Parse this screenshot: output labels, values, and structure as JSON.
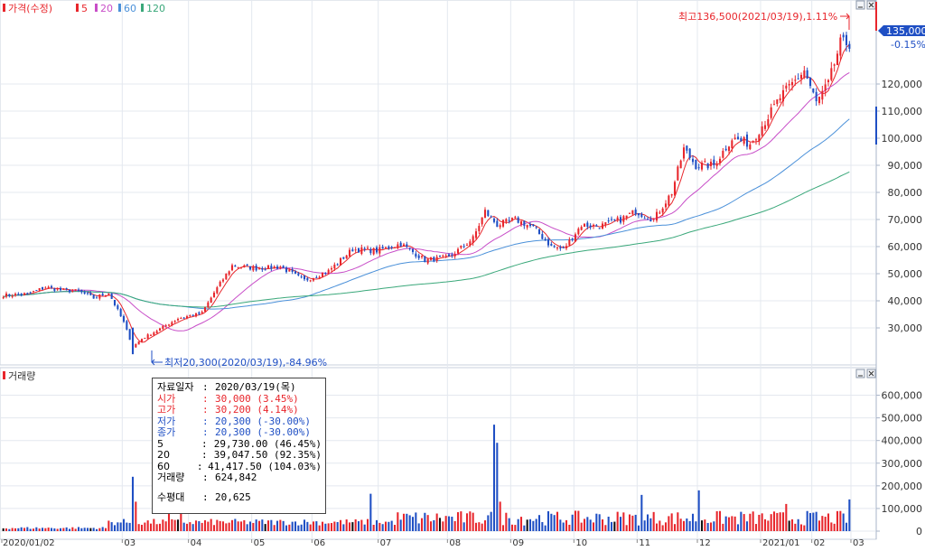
{
  "chart_data": [
    {
      "type": "candlestick",
      "legend": [
        {
          "name": "가격(수정)",
          "color": "#e8262c"
        },
        {
          "name": "5",
          "color": "#e8262c"
        },
        {
          "name": "20",
          "color": "#c84ec8"
        },
        {
          "name": "60",
          "color": "#4a90d9"
        },
        {
          "name": "120",
          "color": "#3aa87a"
        }
      ],
      "y_ticks": [
        "30,000",
        "40,000",
        "50,000",
        "60,000",
        "70,000",
        "80,000",
        "90,000",
        "100,000",
        "110,000",
        "120,000"
      ],
      "y_tick_values": [
        30000,
        40000,
        50000,
        60000,
        70000,
        80000,
        90000,
        100000,
        110000,
        120000
      ],
      "ylim": [
        17000,
        145000
      ],
      "current_price": "135,000",
      "current_change": "-0.15%",
      "high_label": "최고136,500(2021/03/19),1.11%",
      "low_label": "최저20,300(2020/03/19),-84.96%",
      "x_ticks": [
        "2020/01/02",
        "03",
        "04",
        "05",
        "06",
        "07",
        "08",
        "09",
        "10",
        "11",
        "12",
        "2021/01",
        "02",
        "03"
      ],
      "close_anchors": [
        [
          0,
          42000
        ],
        [
          8,
          42500
        ],
        [
          14,
          45000
        ],
        [
          19,
          44000
        ],
        [
          25,
          43500
        ],
        [
          30,
          41000
        ],
        [
          35,
          43000
        ],
        [
          40,
          32000
        ],
        [
          43,
          23000
        ],
        [
          46,
          26000
        ],
        [
          51,
          29000
        ],
        [
          58,
          33500
        ],
        [
          66,
          35500
        ],
        [
          70,
          43000
        ],
        [
          76,
          53000
        ],
        [
          84,
          52000
        ],
        [
          92,
          52500
        ],
        [
          100,
          47500
        ],
        [
          108,
          51000
        ],
        [
          116,
          59000
        ],
        [
          124,
          58500
        ],
        [
          132,
          61000
        ],
        [
          140,
          55000
        ],
        [
          148,
          56000
        ],
        [
          156,
          63000
        ],
        [
          160,
          73000
        ],
        [
          164,
          68000
        ],
        [
          170,
          70000
        ],
        [
          176,
          67000
        ],
        [
          182,
          60000
        ],
        [
          186,
          59000
        ],
        [
          192,
          68000
        ],
        [
          198,
          67500
        ],
        [
          205,
          70000
        ],
        [
          210,
          73000
        ],
        [
          216,
          70000
        ],
        [
          222,
          80000
        ],
        [
          226,
          96000
        ],
        [
          230,
          90000
        ],
        [
          236,
          90000
        ],
        [
          242,
          100000
        ],
        [
          248,
          98000
        ],
        [
          254,
          108000
        ],
        [
          258,
          115000
        ],
        [
          262,
          120000
        ],
        [
          266,
          125000
        ],
        [
          270,
          113000
        ],
        [
          274,
          120000
        ],
        [
          278,
          135000
        ]
      ],
      "ma_windows": [
        5,
        20,
        60,
        120
      ],
      "ma_colors": [
        "#e8262c",
        "#c84ec8",
        "#4a90d9",
        "#3aa87a"
      ]
    },
    {
      "type": "bar",
      "title": "거래량",
      "y_ticks": [
        "0",
        "100,000",
        "200,000",
        "300,000",
        "400,000",
        "500,000",
        "600,000"
      ],
      "y_tick_values": [
        0,
        100000,
        200000,
        300000,
        400000,
        500000,
        600000
      ],
      "ylim": [
        0,
        650000
      ],
      "spikes": [
        [
          43,
          240000
        ],
        [
          44,
          130000
        ],
        [
          55,
          125000
        ],
        [
          59,
          150000
        ],
        [
          122,
          165000
        ],
        [
          163,
          470000
        ],
        [
          164,
          390000
        ],
        [
          165,
          130000
        ],
        [
          212,
          160000
        ],
        [
          231,
          180000
        ],
        [
          260,
          120000
        ],
        [
          281,
          140000
        ]
      ],
      "baseline_volume": [
        25000,
        90000
      ]
    }
  ],
  "tooltip": {
    "date": {
      "label": "자료일자",
      "value": "2020/03/19(목)"
    },
    "open": {
      "label": "시가",
      "value": "30,000 (3.45%)"
    },
    "high": {
      "label": "고가",
      "value": "30,200 (4.14%)"
    },
    "low": {
      "label": "저가",
      "value": "20,300 (-30.00%)"
    },
    "close": {
      "label": "종가",
      "value": "20,300 (-30.00%)"
    },
    "ma5": {
      "label": "5",
      "value": "29,730.00 (46.45%)"
    },
    "ma20": {
      "label": "20",
      "value": "39,047.50 (92.35%)"
    },
    "ma60": {
      "label": "60",
      "value": "41,417.50 (104.03%)"
    },
    "volume": {
      "label": "거래량",
      "value": "624,842"
    },
    "vol_avg": {
      "label": "수평대",
      "value": "20,625"
    }
  },
  "colors": {
    "up": "#e8262c",
    "down": "#1f4fc4",
    "grid": "#e4e8ef",
    "axis_text": "#333333",
    "panel_border": "#a8b4c8",
    "price_tag_bg": "#1f4fc4"
  }
}
